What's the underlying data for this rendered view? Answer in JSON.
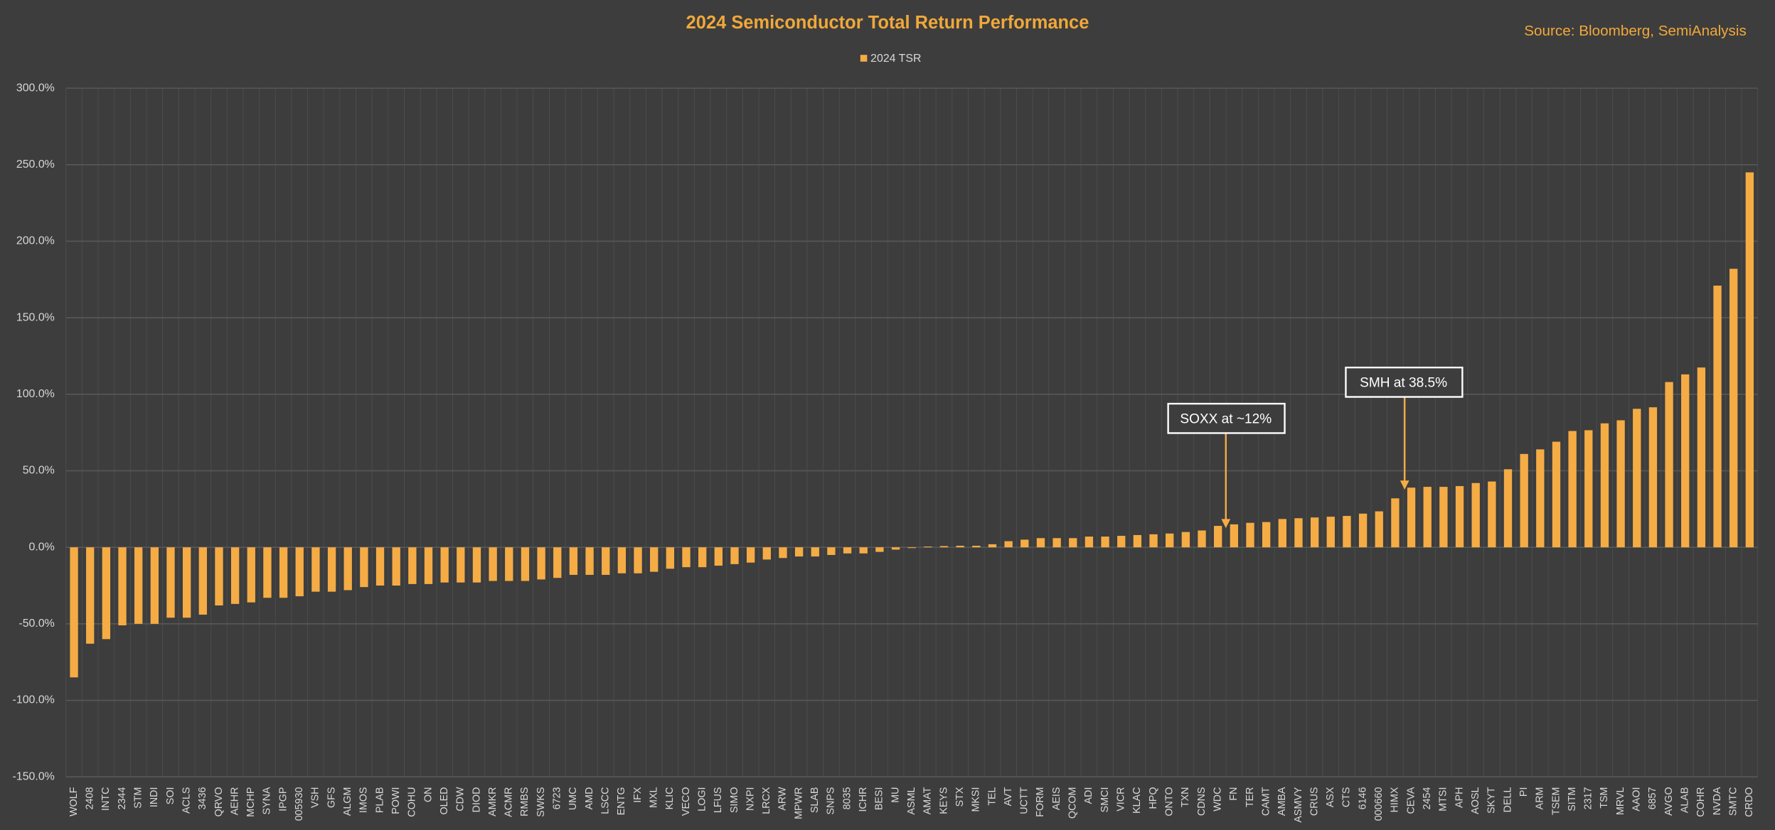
{
  "chart_data": {
    "type": "bar",
    "title": "2024 Semiconductor Total Return Performance",
    "source": "Source: Bloomberg, SemiAnalysis",
    "annotations": [
      "SOXX at ~12%",
      "SMH at 38.5%"
    ],
    "categories": [
      "WOLF",
      "2408",
      "INTC",
      "2344",
      "STM",
      "INDI",
      "SOI",
      "ACLS",
      "3436",
      "QRVO",
      "AEHR",
      "MCHP",
      "SYNA",
      "IPGP",
      "005930",
      "VSH",
      "GFS",
      "ALGM",
      "IMOS",
      "PLAB",
      "POWI",
      "COHU",
      "ON",
      "OLED",
      "CDW",
      "DIOD",
      "AMKR",
      "ACMR",
      "RMBS",
      "SWKS",
      "6723",
      "UMC",
      "AMD",
      "LSCC",
      "ENTG",
      "IFX",
      "MXL",
      "KLIC",
      "VECO",
      "LOGI",
      "LFUS",
      "SIMO",
      "NXPI",
      "LRCX",
      "ARW",
      "MPWR",
      "SLAB",
      "SNPS",
      "8035",
      "ICHR",
      "BESI",
      "MU",
      "ASML",
      "AMAT",
      "KEYS",
      "STX",
      "MKSI",
      "TEL",
      "AVT",
      "UCTT",
      "FORM",
      "AEIS",
      "QCOM",
      "ADI",
      "SMCI",
      "VICR",
      "KLAC",
      "HPQ",
      "ONTO",
      "TXN",
      "CDNS",
      "WDC",
      "FN",
      "TER",
      "CAMT",
      "AMBA",
      "ASMVY",
      "CRUS",
      "ASX",
      "CTS",
      "6146",
      "000660",
      "HIMX",
      "CEVA",
      "2454",
      "MTSI",
      "APH",
      "AOSL",
      "SKYT",
      "DELL",
      "PI",
      "ARM",
      "TSEM",
      "SITM",
      "2317",
      "TSM",
      "MRVL",
      "AAOI",
      "6857",
      "AVGO",
      "ALAB",
      "COHR",
      "NVDA",
      "SMTC",
      "CRDO"
    ],
    "series": [
      {
        "name": "2024 TSR",
        "color": "#f5ac45",
        "values": [
          -85,
          -63,
          -60,
          -51,
          -50,
          -50,
          -46,
          -46,
          -44,
          -38,
          -37,
          -36,
          -33,
          -33,
          -32,
          -29,
          -29,
          -28,
          -26,
          -25,
          -25,
          -24,
          -24,
          -23,
          -23,
          -23,
          -22,
          -22,
          -22,
          -21,
          -20,
          -18,
          -18,
          -18,
          -17,
          -17,
          -16,
          -14,
          -13,
          -13,
          -12,
          -11,
          -10,
          -8,
          -7,
          -6,
          -6,
          -5,
          -4,
          -4,
          -3,
          -1.5,
          -0.5,
          0.5,
          0.8,
          1,
          1,
          2,
          4,
          5,
          6,
          6,
          6,
          7,
          7,
          7.5,
          8,
          8.5,
          9,
          10,
          11,
          14,
          15,
          16,
          16.5,
          18.5,
          19,
          19.5,
          20,
          20.5,
          22,
          23.5,
          32,
          39,
          39.5,
          39.5,
          40,
          42,
          43,
          51,
          61,
          64,
          69,
          76,
          76.5,
          81,
          83,
          90.5,
          91.5,
          108,
          113,
          117.5,
          171,
          182,
          245
        ]
      }
    ],
    "ylim": [
      -150,
      300
    ],
    "yticks": [
      {
        "value": -150,
        "label": "-150.0%"
      },
      {
        "value": -100,
        "label": "-100.0%"
      },
      {
        "value": -50,
        "label": "-50.0%"
      },
      {
        "value": 0,
        "label": "0.0%"
      },
      {
        "value": 50,
        "label": "50.0%"
      },
      {
        "value": 100,
        "label": "100.0%"
      },
      {
        "value": 150,
        "label": "150.0%"
      },
      {
        "value": 200,
        "label": "200.0%"
      },
      {
        "value": 250,
        "label": "250.0%"
      },
      {
        "value": 300,
        "label": "300.0%"
      }
    ],
    "grid": true,
    "legend": "top"
  }
}
